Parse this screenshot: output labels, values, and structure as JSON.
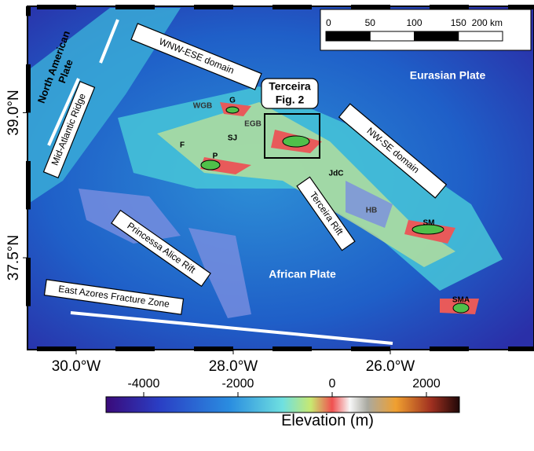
{
  "map": {
    "lonlim": [
      -30.62,
      -24.17
    ],
    "latlim": [
      36.55,
      40.1
    ],
    "lat_ticks": [
      {
        "value": 39,
        "label": "39.0°N"
      },
      {
        "value": 37.5,
        "label": "37.5°N"
      }
    ],
    "lon_ticks": [
      {
        "value": -30,
        "label": "30.0°W"
      },
      {
        "value": -28,
        "label": "28.0°W"
      },
      {
        "value": -26,
        "label": "26.0°W"
      }
    ],
    "labels": {
      "wnw": "WNW-ESE domain",
      "nap1": "North American",
      "nap2": "Plate",
      "mar": "Mid-Atlantic Ridge",
      "eur": "Eurasian Plate",
      "ter1": "Terceira",
      "ter2": "Fig. 2",
      "nwse": "NW-SE domain",
      "wgb": "WGB",
      "g": "G",
      "egb": "EGB",
      "sj": "SJ",
      "f": "F",
      "p": "P",
      "jdc": "JdC",
      "hb": "HB",
      "sm": "SM",
      "trift": "Terceira Rift",
      "par": "Princessa Alice Rift",
      "afr": "African Plate",
      "sma": "SMA",
      "eafz": "East Azores Fracture Zone"
    }
  },
  "scale_bar": {
    "ticks": [
      0,
      50,
      100,
      150,
      {
        "value": 200,
        "label": "200 km"
      }
    ]
  },
  "colorbar": {
    "lim": [
      -4800,
      2700
    ],
    "ticks": [
      -4000,
      -2000,
      0,
      2000
    ],
    "title": "Elevation (m)"
  }
}
